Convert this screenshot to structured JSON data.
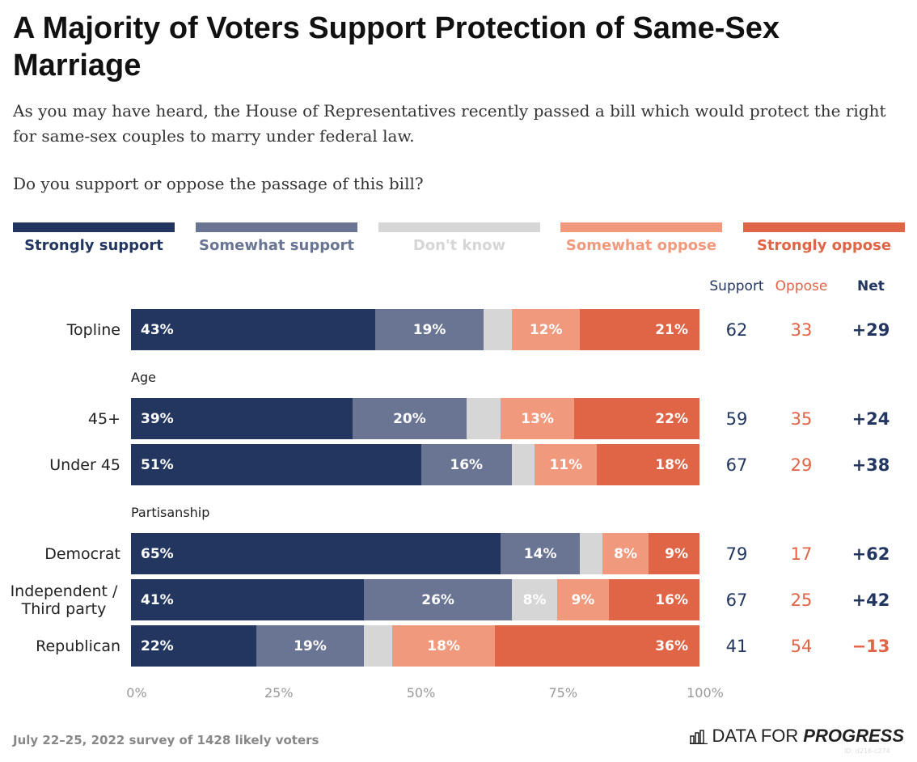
{
  "title": "A Majority of Voters Support Protection of Same-Sex Marriage",
  "subtitle": "As you may have heard, the House of Representatives recently passed a bill which would protect the right for same-sex couples to marry under federal law.",
  "question": "Do you support or oppose the passage of this bill?",
  "footer": "July 22–25, 2022 survey of 1428 likely voters",
  "logo": {
    "light": "DATA FOR",
    "bold": "PROGRESS",
    "icon": "bar-chart-icon"
  },
  "watermark": "ID: d216-c274",
  "chart_data": {
    "type": "bar",
    "orientation": "horizontal-stacked",
    "series": [
      {
        "name": "Strongly support",
        "color": "#233660"
      },
      {
        "name": "Somewhat support",
        "color": "#6a7493"
      },
      {
        "name": "Don't know",
        "color": "#d6d6d6"
      },
      {
        "name": "Somewhat oppose",
        "color": "#f0997d"
      },
      {
        "name": "Strongly oppose",
        "color": "#e06446"
      }
    ],
    "columns": [
      "Support",
      "Oppose",
      "Net"
    ],
    "column_colors": [
      "#233660",
      "#e06446",
      "#233660"
    ],
    "groups": [
      {
        "label": "",
        "rows": [
          {
            "label": "Topline",
            "values": [
              43,
              19,
              5,
              12,
              21
            ],
            "labels": [
              "43%",
              "19%",
              "",
              "12%",
              "21%"
            ],
            "support": "62",
            "oppose": "33",
            "net": "+29"
          }
        ]
      },
      {
        "label": "Age",
        "rows": [
          {
            "label": "45+",
            "values": [
              39,
              20,
              6,
              13,
              22
            ],
            "labels": [
              "39%",
              "20%",
              "",
              "13%",
              "22%"
            ],
            "support": "59",
            "oppose": "35",
            "net": "+24"
          },
          {
            "label": "Under 45",
            "values": [
              51,
              16,
              4,
              11,
              18
            ],
            "labels": [
              "51%",
              "16%",
              "",
              "11%",
              "18%"
            ],
            "support": "67",
            "oppose": "29",
            "net": "+38"
          }
        ]
      },
      {
        "label": "Partisanship",
        "rows": [
          {
            "label": "Democrat",
            "values": [
              65,
              14,
              4,
              8,
              9
            ],
            "labels": [
              "65%",
              "14%",
              "",
              "8%",
              "9%"
            ],
            "support": "79",
            "oppose": "17",
            "net": "+62"
          },
          {
            "label": "Independent / Third party",
            "values": [
              41,
              26,
              8,
              9,
              16
            ],
            "labels": [
              "41%",
              "26%",
              "8%",
              "9%",
              "16%"
            ],
            "support": "67",
            "oppose": "25",
            "net": "+42"
          },
          {
            "label": "Republican",
            "values": [
              22,
              19,
              5,
              18,
              36
            ],
            "labels": [
              "22%",
              "19%",
              "",
              "18%",
              "36%"
            ],
            "support": "41",
            "oppose": "54",
            "net": "−13",
            "net_color": "#e06446"
          }
        ]
      }
    ],
    "xticks": [
      "0%",
      "25%",
      "50%",
      "75%",
      "100%"
    ],
    "xlim": [
      0,
      100
    ]
  }
}
